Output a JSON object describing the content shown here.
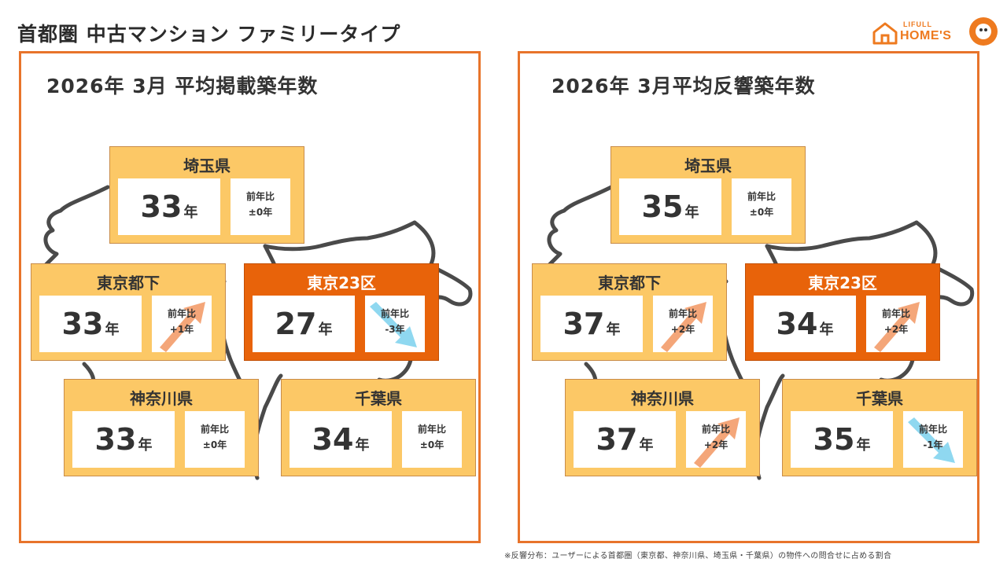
{
  "title": "首都圏 中古マンション ファミリータイプ",
  "logo": {
    "small": "LIFULL",
    "big": "HOME'S"
  },
  "colors": {
    "accent": "#e8742b",
    "card": "#fcc866",
    "highlight": "#e8630a",
    "arrow_up": "#f4a679",
    "arrow_down": "#8fd8f0"
  },
  "panels": [
    {
      "title": "2026年 3月 平均掲載築年数",
      "cards": [
        {
          "name": "埼玉県",
          "value": "33",
          "unit": "年",
          "change_label": "前年比",
          "change": "±0年",
          "trend": "flat",
          "highlight": false
        },
        {
          "name": "東京都下",
          "value": "33",
          "unit": "年",
          "change_label": "前年比",
          "change": "+1年",
          "trend": "up",
          "highlight": false
        },
        {
          "name": "東京23区",
          "value": "27",
          "unit": "年",
          "change_label": "前年比",
          "change": "-3年",
          "trend": "down",
          "highlight": true
        },
        {
          "name": "神奈川県",
          "value": "33",
          "unit": "年",
          "change_label": "前年比",
          "change": "±0年",
          "trend": "flat",
          "highlight": false
        },
        {
          "name": "千葉県",
          "value": "34",
          "unit": "年",
          "change_label": "前年比",
          "change": "±0年",
          "trend": "flat",
          "highlight": false
        }
      ]
    },
    {
      "title": "2026年 3月平均反響築年数",
      "cards": [
        {
          "name": "埼玉県",
          "value": "35",
          "unit": "年",
          "change_label": "前年比",
          "change": "±0年",
          "trend": "flat",
          "highlight": false
        },
        {
          "name": "東京都下",
          "value": "37",
          "unit": "年",
          "change_label": "前年比",
          "change": "+2年",
          "trend": "up",
          "highlight": false
        },
        {
          "name": "東京23区",
          "value": "34",
          "unit": "年",
          "change_label": "前年比",
          "change": "+2年",
          "trend": "up",
          "highlight": true
        },
        {
          "name": "神奈川県",
          "value": "37",
          "unit": "年",
          "change_label": "前年比",
          "change": "+2年",
          "trend": "up",
          "highlight": false
        },
        {
          "name": "千葉県",
          "value": "35",
          "unit": "年",
          "change_label": "前年比",
          "change": "-1年",
          "trend": "down",
          "highlight": false
        }
      ]
    }
  ],
  "footnote": "※反響分布：ユーザーによる首都圏（東京都、神奈川県、埼玉県・千葉県）の物件への問合せに占める割合"
}
